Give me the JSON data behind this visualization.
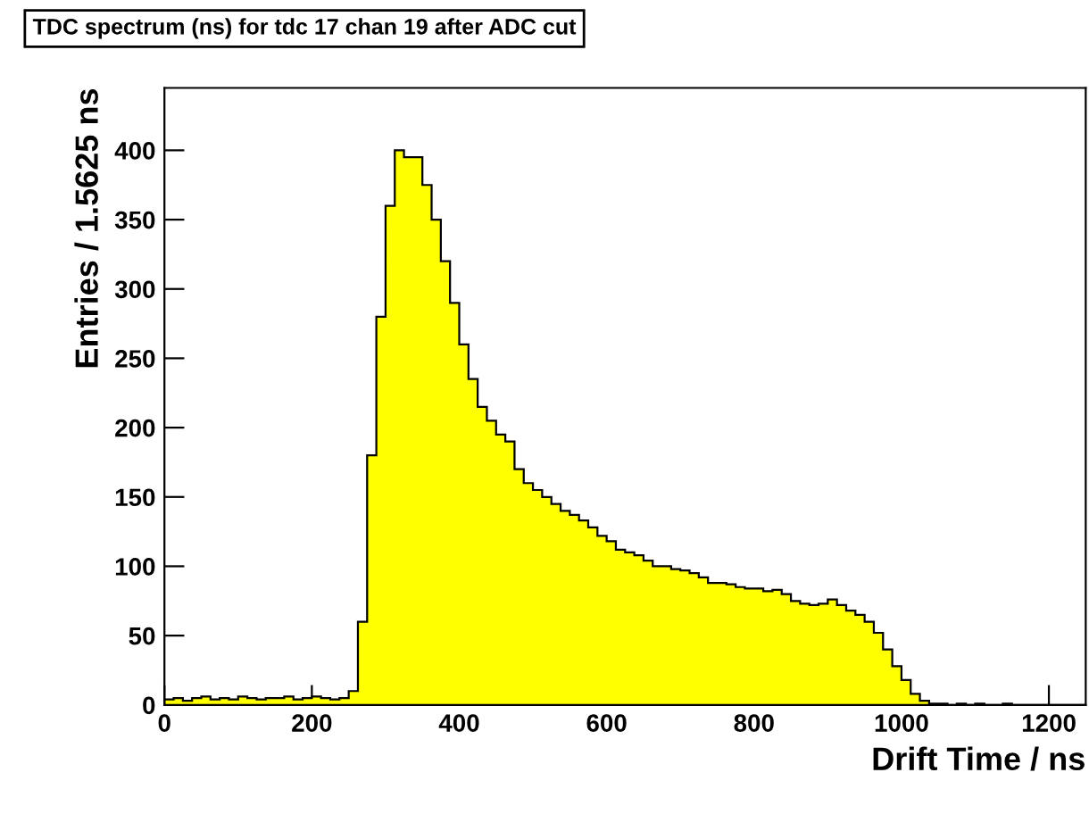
{
  "chart_data": {
    "type": "histogram",
    "title": "TDC spectrum (ns) for tdc 17 chan 19 after ADC cut",
    "xlabel": "Drift Time / ns",
    "ylabel": "Entries / 1.5625 ns",
    "color": "#ffff00",
    "bins": [
      0,
      12.5,
      25,
      37.5,
      50,
      62.5,
      75,
      87.5,
      100,
      112.5,
      125,
      137.5,
      150,
      162.5,
      175,
      187.5,
      200,
      212.5,
      225,
      237.5,
      250,
      262.5,
      275,
      287.5,
      300,
      312.5,
      325,
      337.5,
      350,
      362.5,
      375,
      387.5,
      400,
      412.5,
      425,
      437.5,
      450,
      462.5,
      475,
      487.5,
      500,
      512.5,
      525,
      537.5,
      550,
      562.5,
      575,
      587.5,
      600,
      612.5,
      625,
      637.5,
      650,
      662.5,
      675,
      687.5,
      700,
      712.5,
      725,
      737.5,
      750,
      762.5,
      775,
      787.5,
      800,
      812.5,
      825,
      837.5,
      850,
      862.5,
      875,
      887.5,
      900,
      912.5,
      925,
      937.5,
      950,
      962.5,
      975,
      987.5,
      1000,
      1012.5,
      1025,
      1037.5,
      1050,
      1062.5,
      1075,
      1087.5,
      1100,
      1112.5,
      1125,
      1137.5,
      1150,
      1162.5,
      1175,
      1187.5,
      1200,
      1212.5,
      1225,
      1237.5,
      1250
    ],
    "values": [
      4,
      5,
      3,
      5,
      6,
      4,
      5,
      4,
      6,
      5,
      4,
      5,
      5,
      6,
      4,
      5,
      6,
      5,
      4,
      5,
      10,
      60,
      180,
      280,
      360,
      400,
      395,
      395,
      375,
      350,
      320,
      290,
      260,
      235,
      215,
      205,
      195,
      190,
      170,
      160,
      155,
      150,
      145,
      140,
      137,
      133,
      128,
      122,
      118,
      112,
      110,
      108,
      104,
      100,
      100,
      98,
      97,
      95,
      92,
      88,
      88,
      87,
      85,
      84,
      84,
      82,
      83,
      80,
      75,
      73,
      72,
      73,
      76,
      72,
      68,
      65,
      60,
      52,
      40,
      28,
      18,
      8,
      3,
      1,
      1,
      0,
      1,
      0,
      1,
      0,
      0,
      1,
      0,
      0,
      0,
      0,
      0,
      0,
      0,
      0
    ],
    "xlim": [
      0,
      1250
    ],
    "xticks": [
      0,
      200,
      400,
      600,
      800,
      1000,
      1200
    ],
    "ylim": [
      0,
      445
    ],
    "yticks": [
      0,
      50,
      100,
      150,
      200,
      250,
      300,
      350,
      400
    ]
  }
}
